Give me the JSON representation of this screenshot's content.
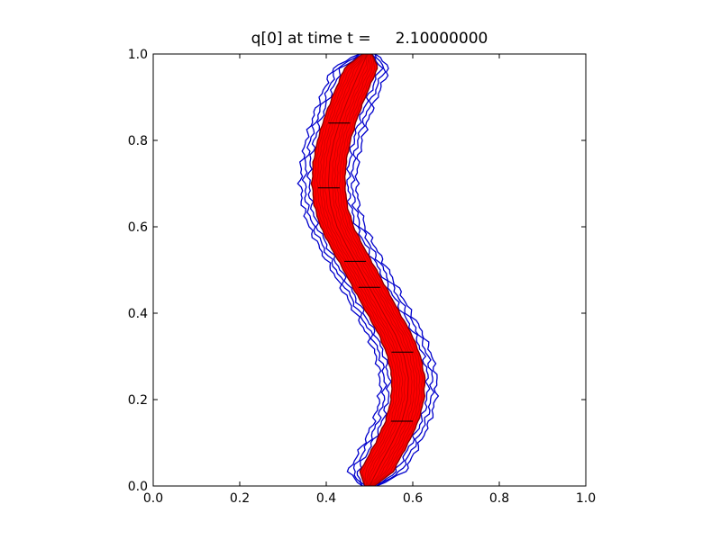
{
  "chart_data": {
    "type": "line",
    "title": "q[0] at time t =     2.10000000",
    "xlabel": "",
    "ylabel": "",
    "xlim": [
      0.0,
      1.0
    ],
    "ylim": [
      0.0,
      1.0
    ],
    "x_ticks": [
      "0.0",
      "0.2",
      "0.4",
      "0.6",
      "0.8",
      "1.0"
    ],
    "y_ticks": [
      "0.0",
      "0.2",
      "0.4",
      "0.6",
      "0.8",
      "1.0"
    ],
    "grid": false,
    "legend": "none",
    "colors": {
      "filled_band": "#ff0000",
      "outer_contours": "#0000cc",
      "band_edge": "#8b0000",
      "hatch": "#000000"
    },
    "centerline": {
      "y": [
        0.0,
        0.05,
        0.1,
        0.15,
        0.2,
        0.25,
        0.3,
        0.35,
        0.4,
        0.45,
        0.5,
        0.55,
        0.6,
        0.65,
        0.7,
        0.75,
        0.8,
        0.85,
        0.9,
        0.95,
        1.0
      ],
      "x": [
        0.5,
        0.525,
        0.552,
        0.575,
        0.588,
        0.59,
        0.58,
        0.56,
        0.532,
        0.505,
        0.478,
        0.45,
        0.425,
        0.41,
        0.405,
        0.408,
        0.418,
        0.433,
        0.452,
        0.473,
        0.495
      ]
    },
    "band_half_widths": [
      0.008,
      0.014,
      0.02,
      0.026,
      0.032,
      0.038
    ],
    "outer_contour_half_widths": [
      0.045,
      0.055,
      0.065
    ],
    "hatch_levels_y": [
      0.15,
      0.31,
      0.46,
      0.52,
      0.69,
      0.84
    ]
  }
}
